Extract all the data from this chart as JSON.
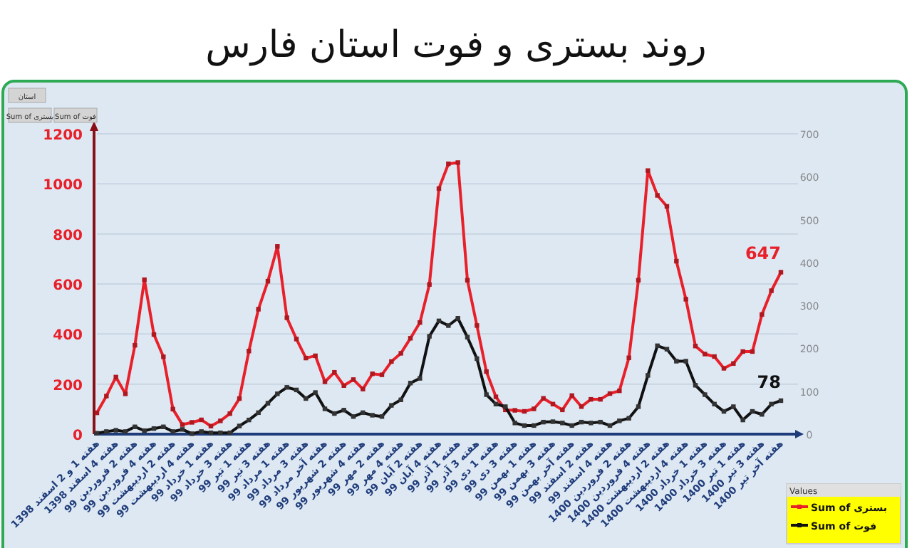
{
  "chart_data": {
    "type": "line",
    "title": "روند بستری و فوت استان فارس",
    "categories": [
      "هفته 1 و 2 اسفند 1398",
      null,
      "هفته 4 اسفند 1398",
      null,
      "هفته 2 فروردین 99",
      null,
      "هفته 4 فروردین 99",
      null,
      "هفته 2 اردیبهشت 99",
      null,
      "هفته 4 اردیبهشت 99",
      null,
      "هفته 1 خرداد 99",
      null,
      "هفته 3 خرداد 99",
      null,
      "هفته 1 تیر 99",
      null,
      "هفته 3 تیر 99",
      null,
      "هفته 1 مرداد 99",
      null,
      "هفته 3 مرداد 99",
      null,
      "هفته آخر مرداد 99",
      null,
      "هفته 2 شهریور 99",
      null,
      "هفته 4 شهریور 99",
      null,
      "هفته 2 مهر 99",
      null,
      "هفته 4 مهر 99",
      null,
      "هفته 2 آبان 99",
      null,
      "هفته 4 آبان 99",
      null,
      "هفته 1 آذر 99",
      null,
      "هفته 3 آذر 99",
      null,
      "هفته 1 دی 99",
      null,
      "هفته 3 دی 99",
      null,
      "هفته 1 بهمن 99",
      null,
      "هفته 3 بهمن 99",
      null,
      "هفته آخر بهمن 99",
      null,
      "هفته 2 اسفند 99",
      null,
      "هفته 4 اسفند 99",
      null,
      "هفته 2 فروردین 1400",
      null,
      "هفته 4 فروردین 1400",
      null,
      "هفته 2 اردیبهشت 1400",
      null,
      "هفته 4 اردیبهشت 1400",
      null,
      "هفته 1 خرداد 1400",
      null,
      "هفته 3 خرداد 1400",
      null,
      "هفته 1 تیر 1400",
      null,
      "هفته 3 تیر 1400",
      null,
      "هفته آخر تیر 1400"
    ],
    "series": [
      {
        "name": "Sum of بستری",
        "color": "#e8202a",
        "values": [
          85,
          152,
          228,
          161,
          355,
          617,
          398,
          309,
          100,
          38,
          47,
          57,
          32,
          53,
          82,
          142,
          332,
          499,
          611,
          750,
          465,
          380,
          304,
          313,
          209,
          247,
          194,
          218,
          180,
          241,
          237,
          290,
          323,
          383,
          446,
          598,
          981,
          1080,
          1085,
          615,
          434,
          250,
          149,
          97,
          95,
          91,
          101,
          143,
          120,
          97,
          154,
          110,
          139,
          139,
          162,
          173,
          305,
          615,
          1053,
          954,
          910,
          691,
          539,
          352,
          320,
          310,
          263,
          282,
          330,
          330,
          478,
          573,
          647
        ],
        "value_labels": [
          null,
          null,
          null,
          null,
          null,
          null,
          null,
          null,
          null,
          null,
          null,
          null,
          null,
          null,
          null,
          null,
          null,
          null,
          null,
          null,
          null,
          null,
          null,
          null,
          null,
          null,
          null,
          null,
          null,
          null,
          null,
          null,
          null,
          null,
          null,
          null,
          null,
          null,
          null,
          null,
          null,
          null,
          null,
          null,
          null,
          null,
          null,
          null,
          null,
          null,
          null,
          null,
          null,
          null,
          null,
          null,
          null,
          null,
          null,
          null,
          null,
          null,
          null,
          null,
          null,
          null,
          null,
          null,
          null,
          null,
          null,
          null,
          "647"
        ]
      },
      {
        "name": "Sum of فوت",
        "color": "#111111",
        "axis": "y2",
        "values": [
          2,
          6,
          9,
          6,
          17,
          8,
          13,
          17,
          6,
          11,
          1,
          6,
          3,
          3,
          3,
          19,
          33,
          50,
          72,
          94,
          109,
          103,
          83,
          97,
          59,
          48,
          56,
          41,
          50,
          44,
          41,
          67,
          80,
          119,
          130,
          228,
          264,
          253,
          270,
          226,
          176,
          92,
          70,
          64,
          26,
          20,
          20,
          28,
          29,
          26,
          20,
          28,
          26,
          28,
          20,
          31,
          37,
          64,
          137,
          206,
          198,
          170,
          170,
          114,
          92,
          70,
          53,
          64,
          33,
          53,
          46,
          70,
          78
        ],
        "value_labels": [
          null,
          null,
          null,
          null,
          null,
          null,
          null,
          null,
          null,
          null,
          null,
          null,
          null,
          null,
          null,
          null,
          null,
          null,
          null,
          null,
          null,
          null,
          null,
          null,
          null,
          null,
          null,
          null,
          null,
          null,
          null,
          null,
          null,
          null,
          null,
          null,
          null,
          null,
          null,
          null,
          null,
          null,
          null,
          null,
          null,
          null,
          null,
          null,
          null,
          null,
          null,
          null,
          null,
          null,
          null,
          null,
          null,
          null,
          null,
          null,
          null,
          null,
          null,
          null,
          null,
          null,
          null,
          null,
          null,
          null,
          null,
          null,
          "78"
        ]
      }
    ],
    "ylim": [
      0,
      1200
    ],
    "yticks": [
      0,
      200,
      400,
      600,
      800,
      1000,
      1200
    ],
    "y2lim": [
      0,
      700
    ],
    "y2ticks": [
      0,
      100,
      200,
      300,
      400,
      500,
      600,
      700
    ],
    "grid": "y",
    "legend": "bottom right",
    "legend_title": "Values",
    "marker": "square",
    "line_style": "solid",
    "annotations": [
      "استان",
      "Sum of بستری",
      "Sum of فوت"
    ]
  }
}
